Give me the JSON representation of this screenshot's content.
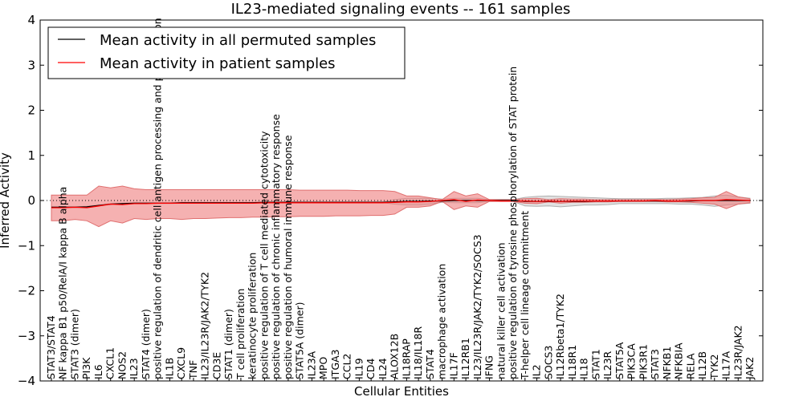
{
  "chart_data": {
    "type": "line",
    "title": "IL23-mediated signaling events -- 161 samples",
    "xlabel": "Cellular Entities",
    "ylabel": "Inferred Activity",
    "ylim": [
      -4,
      4
    ],
    "yticks": [
      "4",
      "3",
      "2",
      "1",
      "0",
      "−1",
      "−2",
      "−3",
      "−4"
    ],
    "ytick_values": [
      4,
      3,
      2,
      1,
      0,
      -1,
      -2,
      -3,
      -4
    ],
    "categories": [
      "STAT3/STAT4",
      "NF kappa B1 p50/RelA/I kappa B alpha",
      "STAT3 (dimer)",
      "PI3K",
      "IL6",
      "CXCL1",
      "NOS2",
      "IL23",
      "STAT4 (dimer)",
      "positive regulation of dendritic cell antigen processing and presentation",
      "IL1B",
      "CXCL9",
      "TNF",
      "IL23/IL23R/JAK2/TYK2",
      "CD3E",
      "STAT1 (dimer)",
      "T cell proliferation",
      "keratinocyte proliferation",
      "positive regulation of T cell mediated cytotoxicity",
      "positive regulation of chronic inflammatory response",
      "positive regulation of humoral immune response",
      "STAT5A (dimer)",
      "IL23A",
      "MPO",
      "ITGA3",
      "CCL2",
      "IL19",
      "CD4",
      "IL24",
      "ALOX12B",
      "IL18RAP",
      "IL18/IL18R",
      "STAT4",
      "macrophage activation",
      "IL17F",
      "IL12RB1",
      "IL23/IL23R/JAK2/TYK2/SOCS3",
      "IFNG",
      "natural killer cell activation",
      "positive regulation of tyrosine phosphorylation of STAT protein",
      "T-helper cell lineage commitment",
      "IL2",
      "SOCS3",
      "IL12Rbeta1/TYK2",
      "IL18R1",
      "IL18",
      "STAT1",
      "IL23R",
      "STAT5A",
      "PIK3CA",
      "PIK3R1",
      "STAT3",
      "NFKB1",
      "NFKBIA",
      "RELA",
      "IL12B",
      "TYK2",
      "IL17A",
      "IL23R/JAK2",
      "JAK2"
    ],
    "series": [
      {
        "name": "Mean activity in all permuted samples",
        "color": "#000000",
        "values": [
          -0.15,
          -0.15,
          -0.15,
          -0.14,
          -0.11,
          -0.08,
          -0.07,
          -0.06,
          -0.06,
          -0.06,
          -0.06,
          -0.05,
          -0.05,
          -0.05,
          -0.05,
          -0.05,
          -0.05,
          -0.05,
          -0.04,
          -0.04,
          -0.04,
          -0.04,
          -0.04,
          -0.04,
          -0.04,
          -0.04,
          -0.04,
          -0.04,
          -0.04,
          -0.03,
          -0.02,
          -0.02,
          -0.01,
          -0.01,
          0,
          0,
          0,
          0,
          0,
          0,
          -0.02,
          -0.02,
          -0.02,
          -0.02,
          -0.02,
          -0.02,
          -0.01,
          -0.01,
          -0.01,
          -0.01,
          -0.01,
          -0.01,
          -0.01,
          -0.01,
          -0.01,
          0,
          0,
          0,
          0,
          0
        ],
        "band_lower": [
          -0.16,
          -0.16,
          -0.16,
          -0.15,
          -0.12,
          -0.09,
          -0.08,
          -0.07,
          -0.07,
          -0.07,
          -0.07,
          -0.06,
          -0.06,
          -0.06,
          -0.06,
          -0.06,
          -0.06,
          -0.06,
          -0.05,
          -0.05,
          -0.05,
          -0.05,
          -0.05,
          -0.05,
          -0.05,
          -0.05,
          -0.05,
          -0.05,
          -0.05,
          -0.08,
          -0.1,
          -0.1,
          -0.08,
          -0.04,
          -0.05,
          -0.05,
          -0.05,
          -0.02,
          -0.02,
          -0.02,
          -0.12,
          -0.13,
          -0.12,
          -0.14,
          -0.12,
          -0.1,
          -0.1,
          -0.09,
          -0.07,
          -0.07,
          -0.07,
          -0.07,
          -0.07,
          -0.08,
          -0.08,
          -0.1,
          -0.13,
          -0.1,
          -0.08,
          -0.06
        ],
        "band_upper": [
          -0.14,
          -0.14,
          -0.14,
          -0.13,
          -0.1,
          -0.07,
          -0.06,
          -0.05,
          -0.05,
          -0.05,
          -0.05,
          -0.04,
          -0.04,
          -0.04,
          -0.04,
          -0.04,
          -0.04,
          -0.04,
          -0.03,
          -0.03,
          -0.03,
          -0.03,
          -0.03,
          -0.03,
          -0.03,
          -0.03,
          -0.03,
          -0.03,
          -0.03,
          0.02,
          0.05,
          0.05,
          0.05,
          0.03,
          0.05,
          0.05,
          0.05,
          0.02,
          0.02,
          0.02,
          0.07,
          0.09,
          0.1,
          0.09,
          0.08,
          0.07,
          0.06,
          0.05,
          0.04,
          0.04,
          0.04,
          0.04,
          0.05,
          0.05,
          0.06,
          0.07,
          0.1,
          0.12,
          0.08,
          0.05
        ]
      },
      {
        "name": "Mean activity in patient samples",
        "color": "#ff0000",
        "values": [
          -0.16,
          -0.16,
          -0.15,
          -0.16,
          -0.12,
          -0.08,
          -0.09,
          -0.07,
          -0.07,
          -0.06,
          -0.06,
          -0.06,
          -0.06,
          -0.06,
          -0.06,
          -0.06,
          -0.06,
          -0.06,
          -0.05,
          -0.05,
          -0.05,
          -0.05,
          -0.05,
          -0.05,
          -0.05,
          -0.05,
          -0.05,
          -0.05,
          -0.05,
          -0.04,
          -0.03,
          -0.03,
          -0.02,
          0,
          0.02,
          -0.02,
          0.01,
          0,
          -0.01,
          -0.01,
          -0.01,
          -0.02,
          -0.01,
          -0.02,
          -0.01,
          -0.01,
          -0.01,
          -0.01,
          -0.01,
          -0.01,
          -0.01,
          0,
          -0.01,
          -0.01,
          0,
          0,
          0,
          0.02,
          0.01,
          0
        ],
        "band_lower": [
          -0.45,
          -0.45,
          -0.42,
          -0.45,
          -0.58,
          -0.45,
          -0.5,
          -0.4,
          -0.42,
          -0.4,
          -0.4,
          -0.42,
          -0.4,
          -0.4,
          -0.39,
          -0.38,
          -0.38,
          -0.37,
          -0.37,
          -0.36,
          -0.36,
          -0.35,
          -0.35,
          -0.35,
          -0.34,
          -0.34,
          -0.34,
          -0.33,
          -0.33,
          -0.3,
          -0.15,
          -0.15,
          -0.12,
          -0.02,
          -0.2,
          -0.12,
          -0.15,
          -0.02,
          -0.02,
          -0.02,
          -0.06,
          -0.07,
          -0.03,
          -0.06,
          -0.04,
          -0.04,
          -0.03,
          -0.03,
          -0.02,
          -0.02,
          -0.02,
          -0.02,
          -0.03,
          -0.03,
          -0.04,
          -0.06,
          -0.08,
          -0.18,
          -0.08,
          -0.05
        ],
        "band_upper": [
          0.12,
          0.12,
          0.12,
          0.12,
          0.32,
          0.28,
          0.32,
          0.26,
          0.24,
          0.24,
          0.24,
          0.24,
          0.24,
          0.24,
          0.24,
          0.24,
          0.24,
          0.24,
          0.24,
          0.24,
          0.24,
          0.23,
          0.23,
          0.23,
          0.23,
          0.23,
          0.22,
          0.22,
          0.22,
          0.2,
          0.1,
          0.1,
          0.06,
          0.02,
          0.2,
          0.1,
          0.15,
          0.02,
          0.02,
          0.02,
          0.04,
          0.05,
          0.02,
          0.04,
          0.03,
          0.03,
          0.02,
          0.02,
          0.02,
          0.02,
          0.02,
          0.02,
          0.02,
          0.03,
          0.04,
          0.06,
          0.07,
          0.2,
          0.08,
          0.04
        ]
      }
    ],
    "reference_line": 0,
    "legend_position": "top-left"
  }
}
